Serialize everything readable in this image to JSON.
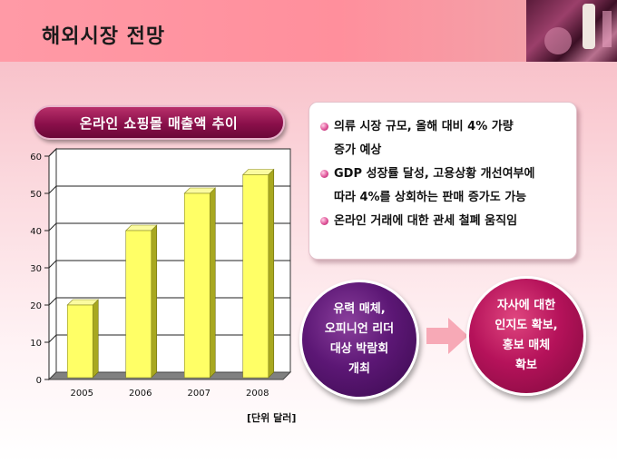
{
  "header": {
    "title": "해외시장 전망"
  },
  "chart_section": {
    "label": "온라인 쇼핑몰 매출액 추이",
    "unit_note": "[단위 달러]"
  },
  "chart_data": {
    "type": "bar",
    "categories": [
      "2005",
      "2006",
      "2007",
      "2008"
    ],
    "values": [
      20,
      40,
      50,
      55
    ],
    "title": "",
    "xlabel": "",
    "ylabel": "",
    "ylim": [
      0,
      60
    ],
    "yticks": [
      0,
      10,
      20,
      30,
      40,
      50,
      60
    ],
    "grid": true,
    "bar_color": "#ffff66",
    "floor_color": "#808080"
  },
  "bullets": [
    "의류 시장 규모, 올해 대비 4% 가량\n증가 예상",
    "GDP 성장률 달성, 고용상황 개선여부에\n따라 4%를 상회하는 판매 증가도 가능",
    "온라인 거래에 대한 관세 철폐 움직임"
  ],
  "flow": {
    "left": "유력 매체,\n오피니언 리더\n대상 박람회\n개최",
    "right": "자사에 대한\n인지도 확보,\n홍보 매체\n확보"
  },
  "colors": {
    "accent": "#8a0f4a",
    "circle_left": "#5c1775",
    "circle_right": "#b5125a",
    "arrow": "#f7a9b6"
  }
}
